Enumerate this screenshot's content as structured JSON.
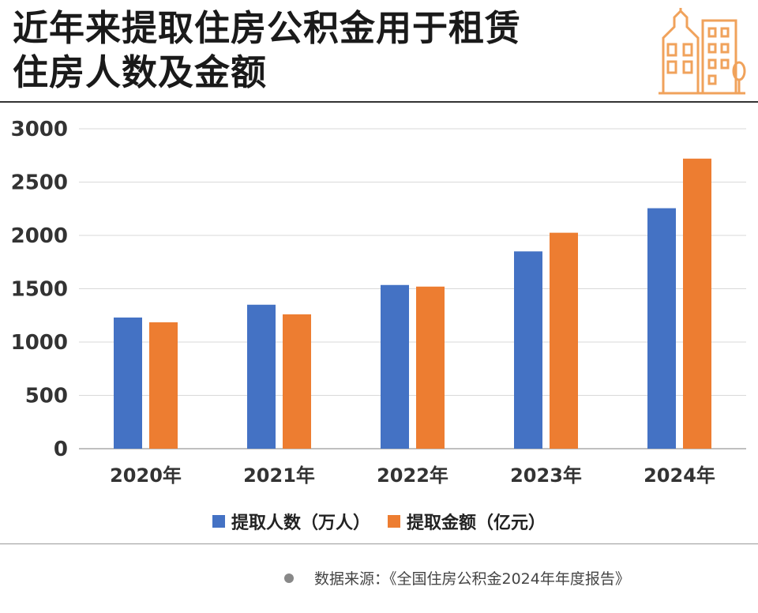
{
  "title": {
    "line1": "近年来提取住房公积金用于租赁",
    "line2": "住房人数及金额"
  },
  "colors": {
    "series_blue": "#4472C4",
    "series_orange": "#ED7D31",
    "logo_orange": "#F0A25B",
    "gridline": "#D9D9D9"
  },
  "logo": {
    "icon": "building-icon"
  },
  "chart_data": {
    "type": "bar",
    "categories": [
      "2020年",
      "2021年",
      "2022年",
      "2023年",
      "2024年"
    ],
    "series": [
      {
        "name": "提取人数（万人）",
        "color": "#4472C4",
        "values": [
          1230,
          1350,
          1535,
          1850,
          2255
        ]
      },
      {
        "name": "提取金额（亿元）",
        "color": "#ED7D31",
        "values": [
          1185,
          1260,
          1520,
          2025,
          2720
        ]
      }
    ],
    "ylim": [
      0,
      3000
    ],
    "yticks": [
      0,
      500,
      1000,
      1500,
      2000,
      2500,
      3000
    ],
    "grid": true,
    "legend": "bottom",
    "xlabel": "",
    "ylabel": ""
  },
  "legend": {
    "series1": "提取人数（万人）",
    "series2": "提取金额（亿元）"
  },
  "source": "数据来源：《全国住房公积金2024年年度报告》"
}
